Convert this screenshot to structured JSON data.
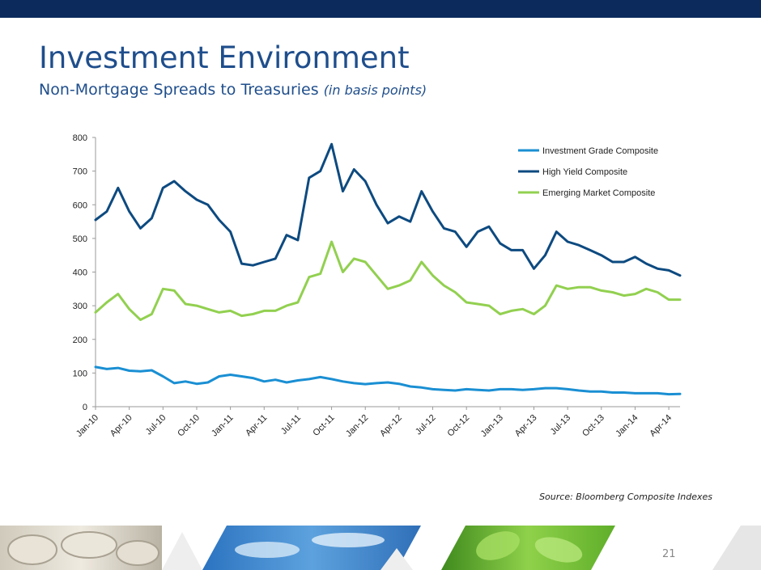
{
  "slide": {
    "title": "Investment Environment",
    "subtitle": "Non-Mortgage Spreads to Treasuries",
    "subtitle_note": "(in basis points)",
    "source": "Source: Bloomberg Composite Indexes",
    "page_number": "21"
  },
  "colors": {
    "header_bar": "#0c2b5c",
    "title": "#1f4e8c",
    "investment_grade": "#1a8fd3",
    "high_yield": "#0d4a80",
    "emerging_market": "#92d050"
  },
  "chart_data": {
    "type": "line",
    "title": "",
    "xlabel": "",
    "ylabel": "",
    "ylim": [
      0,
      800
    ],
    "yticks": [
      0,
      100,
      200,
      300,
      400,
      500,
      600,
      700,
      800
    ],
    "x_tick_labels": [
      "Jan-10",
      "Apr-10",
      "Jul-10",
      "Oct-10",
      "Jan-11",
      "Apr-11",
      "Jul-11",
      "Oct-11",
      "Jan-12",
      "Apr-12",
      "Jul-12",
      "Oct-12",
      "Jan-13",
      "Apr-13",
      "Jul-13",
      "Oct-13",
      "Jan-14",
      "Apr-14"
    ],
    "x_start": "Jan-10",
    "x_end": "May-14",
    "months_span": 52,
    "grid": false,
    "legend_position": "top-right",
    "series": [
      {
        "name": "Investment Grade Composite",
        "color": "#1a8fd3",
        "points": [
          [
            0,
            118
          ],
          [
            1,
            112
          ],
          [
            2,
            115
          ],
          [
            3,
            107
          ],
          [
            4,
            105
          ],
          [
            5,
            108
          ],
          [
            6,
            90
          ],
          [
            7,
            70
          ],
          [
            8,
            75
          ],
          [
            9,
            68
          ],
          [
            10,
            72
          ],
          [
            11,
            90
          ],
          [
            12,
            95
          ],
          [
            13,
            90
          ],
          [
            14,
            85
          ],
          [
            15,
            75
          ],
          [
            16,
            80
          ],
          [
            17,
            72
          ],
          [
            18,
            78
          ],
          [
            19,
            82
          ],
          [
            20,
            88
          ],
          [
            21,
            82
          ],
          [
            22,
            75
          ],
          [
            23,
            70
          ],
          [
            24,
            67
          ],
          [
            25,
            70
          ],
          [
            26,
            72
          ],
          [
            27,
            68
          ],
          [
            28,
            60
          ],
          [
            29,
            57
          ],
          [
            30,
            52
          ],
          [
            31,
            50
          ],
          [
            32,
            48
          ],
          [
            33,
            52
          ],
          [
            34,
            50
          ],
          [
            35,
            48
          ],
          [
            36,
            52
          ],
          [
            37,
            52
          ],
          [
            38,
            50
          ],
          [
            39,
            52
          ],
          [
            40,
            55
          ],
          [
            41,
            55
          ],
          [
            42,
            52
          ],
          [
            43,
            48
          ],
          [
            44,
            45
          ],
          [
            45,
            45
          ],
          [
            46,
            42
          ],
          [
            47,
            42
          ],
          [
            48,
            40
          ],
          [
            49,
            40
          ],
          [
            50,
            40
          ],
          [
            51,
            37
          ],
          [
            52,
            38
          ]
        ]
      },
      {
        "name": "High Yield Composite",
        "color": "#0d4a80",
        "points": [
          [
            0,
            555
          ],
          [
            1,
            580
          ],
          [
            2,
            650
          ],
          [
            3,
            580
          ],
          [
            4,
            530
          ],
          [
            5,
            560
          ],
          [
            6,
            650
          ],
          [
            7,
            670
          ],
          [
            8,
            640
          ],
          [
            9,
            615
          ],
          [
            10,
            600
          ],
          [
            11,
            555
          ],
          [
            12,
            520
          ],
          [
            13,
            425
          ],
          [
            14,
            420
          ],
          [
            15,
            430
          ],
          [
            16,
            440
          ],
          [
            17,
            510
          ],
          [
            18,
            495
          ],
          [
            19,
            680
          ],
          [
            20,
            700
          ],
          [
            21,
            780
          ],
          [
            22,
            640
          ],
          [
            23,
            705
          ],
          [
            24,
            670
          ],
          [
            25,
            600
          ],
          [
            26,
            545
          ],
          [
            27,
            565
          ],
          [
            28,
            550
          ],
          [
            29,
            640
          ],
          [
            30,
            580
          ],
          [
            31,
            530
          ],
          [
            32,
            520
          ],
          [
            33,
            475
          ],
          [
            34,
            520
          ],
          [
            35,
            535
          ],
          [
            36,
            485
          ],
          [
            37,
            465
          ],
          [
            38,
            465
          ],
          [
            39,
            410
          ],
          [
            40,
            450
          ],
          [
            41,
            520
          ],
          [
            42,
            490
          ],
          [
            43,
            480
          ],
          [
            44,
            465
          ],
          [
            45,
            450
          ],
          [
            46,
            430
          ],
          [
            47,
            430
          ],
          [
            48,
            445
          ],
          [
            49,
            425
          ],
          [
            50,
            410
          ],
          [
            51,
            405
          ],
          [
            52,
            390
          ]
        ]
      },
      {
        "name": "Emerging Market Composite",
        "color": "#92d050",
        "points": [
          [
            0,
            280
          ],
          [
            1,
            310
          ],
          [
            2,
            335
          ],
          [
            3,
            290
          ],
          [
            4,
            258
          ],
          [
            5,
            275
          ],
          [
            6,
            350
          ],
          [
            7,
            345
          ],
          [
            8,
            305
          ],
          [
            9,
            300
          ],
          [
            10,
            290
          ],
          [
            11,
            280
          ],
          [
            12,
            285
          ],
          [
            13,
            270
          ],
          [
            14,
            275
          ],
          [
            15,
            285
          ],
          [
            16,
            285
          ],
          [
            17,
            300
          ],
          [
            18,
            310
          ],
          [
            19,
            385
          ],
          [
            20,
            395
          ],
          [
            21,
            490
          ],
          [
            22,
            400
          ],
          [
            23,
            440
          ],
          [
            24,
            430
          ],
          [
            25,
            390
          ],
          [
            26,
            350
          ],
          [
            27,
            360
          ],
          [
            28,
            375
          ],
          [
            29,
            430
          ],
          [
            30,
            390
          ],
          [
            31,
            360
          ],
          [
            32,
            340
          ],
          [
            33,
            310
          ],
          [
            34,
            305
          ],
          [
            35,
            300
          ],
          [
            36,
            275
          ],
          [
            37,
            285
          ],
          [
            38,
            290
          ],
          [
            39,
            275
          ],
          [
            40,
            300
          ],
          [
            41,
            360
          ],
          [
            42,
            350
          ],
          [
            43,
            355
          ],
          [
            44,
            355
          ],
          [
            45,
            345
          ],
          [
            46,
            340
          ],
          [
            47,
            330
          ],
          [
            48,
            335
          ],
          [
            49,
            350
          ],
          [
            50,
            340
          ],
          [
            51,
            318
          ],
          [
            52,
            318
          ]
        ]
      }
    ]
  }
}
